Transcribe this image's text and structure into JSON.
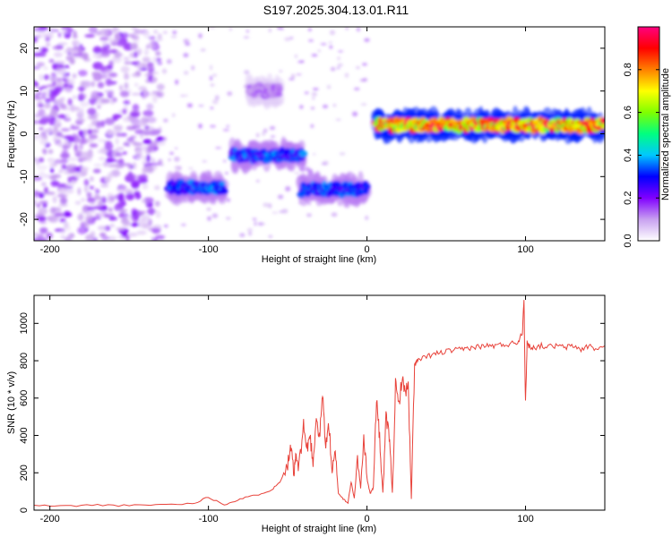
{
  "figure": {
    "title": "S197.2025.304.13.01.R11"
  },
  "chart_data": [
    {
      "type": "heatmap",
      "xlabel": "Height of straight line (km)",
      "ylabel": "Frequency (Hz)",
      "xlim": [
        -210,
        150
      ],
      "ylim": [
        -25,
        25
      ],
      "xticks": [
        -200,
        -100,
        0,
        100
      ],
      "yticks": [
        -20,
        -10,
        0,
        10,
        20
      ],
      "colorbar": {
        "label": "Normalized spectral amplitude",
        "range": [
          0.0,
          1.0
        ],
        "ticks": [
          0.0,
          0.2,
          0.4,
          0.6,
          0.8
        ],
        "colormap": "rainbow",
        "colors": [
          "#ffffff",
          "#c8a0f0",
          "#8000ff",
          "#0000ff",
          "#00c8ff",
          "#00ff80",
          "#80ff00",
          "#ffff00",
          "#ff8000",
          "#ff0000",
          "#ff0080"
        ]
      },
      "features": [
        {
          "x": [
            -210,
            -130
          ],
          "y": [
            -25,
            25
          ],
          "amplitude": 0.15,
          "kind": "scattered noise"
        },
        {
          "x": [
            -125,
            -90
          ],
          "y_center": -12.5,
          "amplitude": 0.35,
          "kind": "band"
        },
        {
          "x": [
            -85,
            -40
          ],
          "y_center": -5,
          "amplitude": 0.35,
          "kind": "band"
        },
        {
          "x": [
            -75,
            -55
          ],
          "y_center": 10,
          "amplitude": 0.15,
          "kind": "band"
        },
        {
          "x": [
            -42,
            0
          ],
          "y_center": -13,
          "amplitude": 0.35,
          "kind": "band"
        },
        {
          "x": [
            5,
            150
          ],
          "y_center": 2,
          "amplitude": 0.9,
          "kind": "band"
        }
      ]
    },
    {
      "type": "line",
      "xlabel": "Height of straight line (km)",
      "ylabel": "SNR (10 * v/v)",
      "xlim": [
        -210,
        150
      ],
      "ylim": [
        0,
        1150
      ],
      "xticks": [
        -200,
        -100,
        0,
        100
      ],
      "yticks": [
        0,
        200,
        400,
        600,
        800,
        1000
      ],
      "color": "#e8423a",
      "x": [
        -210,
        -190,
        -170,
        -150,
        -130,
        -110,
        -100,
        -90,
        -80,
        -70,
        -60,
        -55,
        -50,
        -48,
        -46,
        -45,
        -43,
        -40,
        -38,
        -36,
        -34,
        -32,
        -30,
        -28,
        -26,
        -24,
        -22,
        -20,
        -18,
        -15,
        -12,
        -10,
        -8,
        -6,
        -4,
        -2,
        0,
        2,
        4,
        6,
        8,
        10,
        12,
        14,
        16,
        18,
        20,
        22,
        24,
        26,
        28,
        30,
        32,
        35,
        40,
        45,
        50,
        55,
        60,
        65,
        70,
        75,
        80,
        85,
        90,
        95,
        98,
        99,
        100,
        101,
        102,
        105,
        110,
        115,
        120,
        125,
        130,
        135,
        140,
        145,
        150
      ],
      "y": [
        25,
        22,
        28,
        24,
        30,
        35,
        70,
        30,
        60,
        80,
        110,
        150,
        250,
        330,
        180,
        290,
        220,
        460,
        320,
        400,
        260,
        500,
        380,
        620,
        340,
        460,
        200,
        300,
        90,
        60,
        40,
        150,
        60,
        280,
        120,
        400,
        170,
        90,
        120,
        600,
        380,
        90,
        490,
        400,
        90,
        670,
        560,
        700,
        640,
        660,
        60,
        780,
        800,
        810,
        830,
        840,
        850,
        855,
        860,
        870,
        875,
        880,
        880,
        885,
        890,
        900,
        950,
        1140,
        550,
        900,
        880,
        870,
        880,
        875,
        880,
        870,
        880,
        860,
        880,
        860,
        880
      ]
    }
  ]
}
